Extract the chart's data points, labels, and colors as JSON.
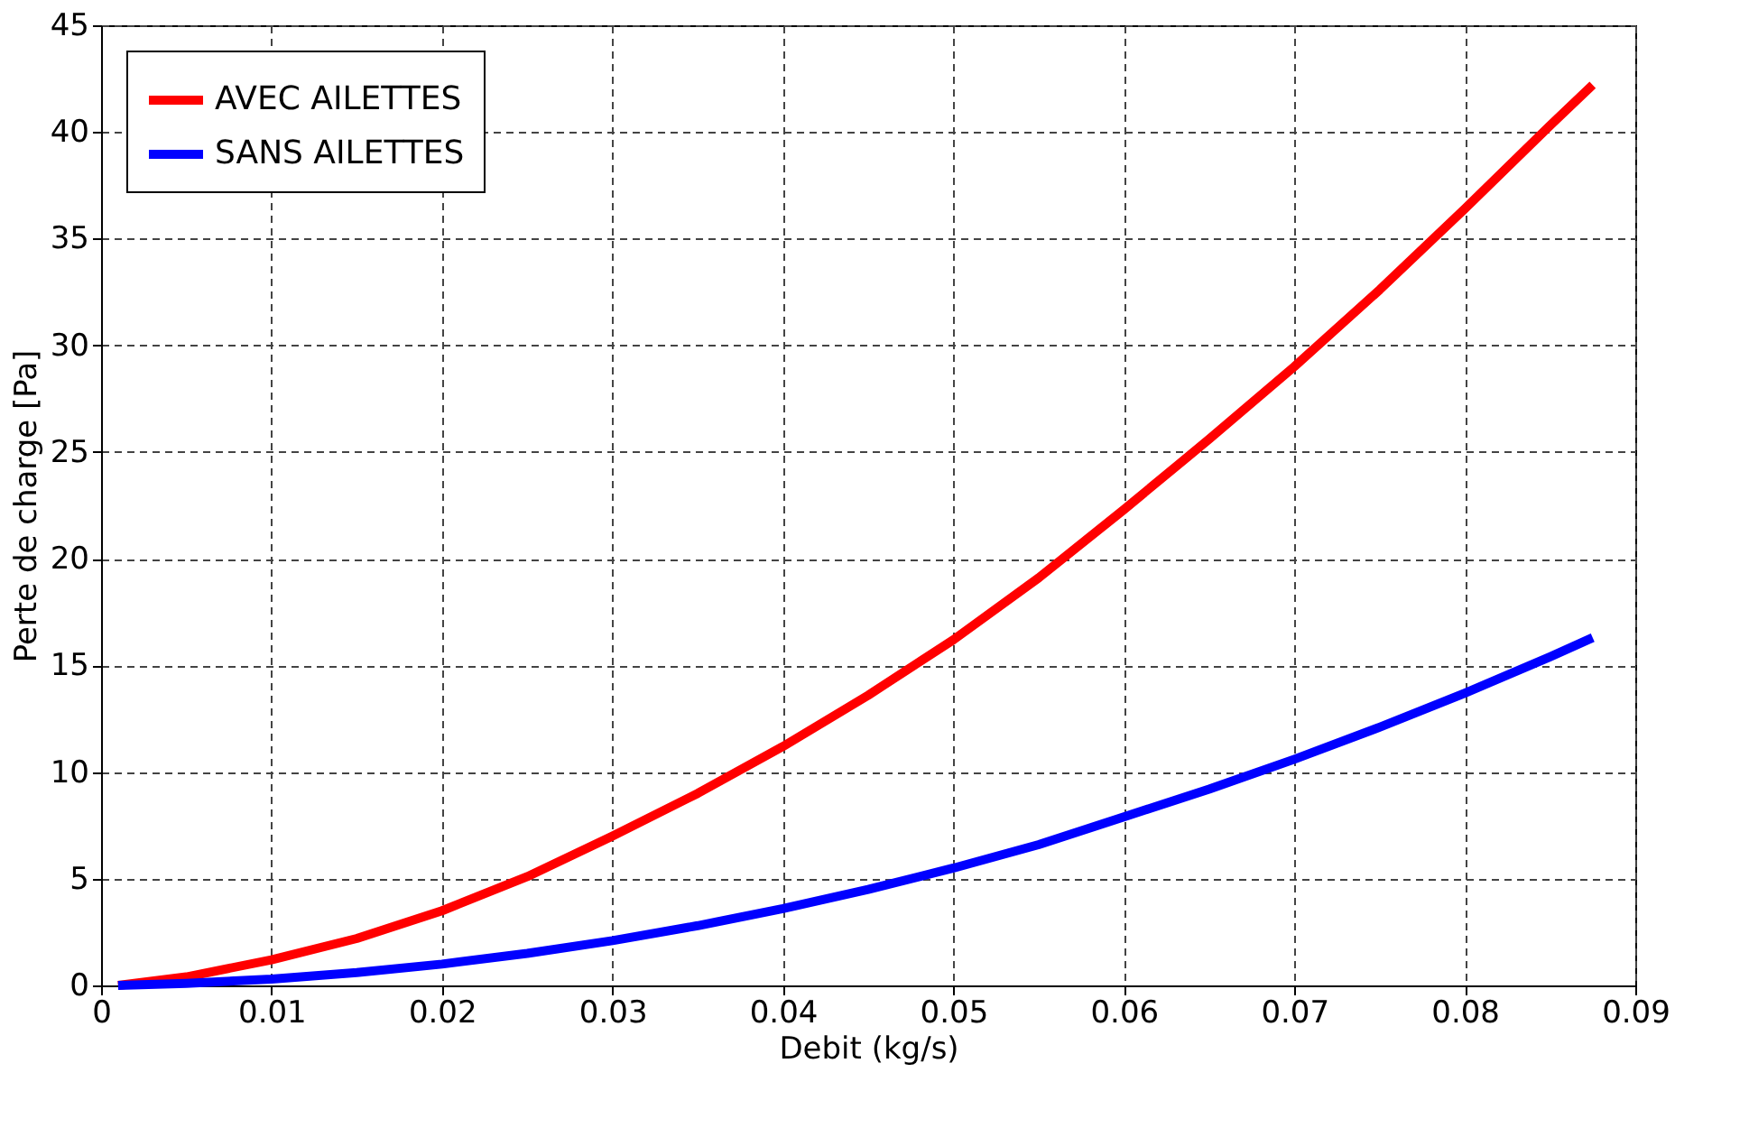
{
  "chart_data": {
    "type": "line",
    "xlabel": "Debit (kg/s)",
    "ylabel": "Perte de charge [Pa]",
    "x": [
      0.001,
      0.005,
      0.01,
      0.015,
      0.02,
      0.025,
      0.03,
      0.035,
      0.04,
      0.045,
      0.05,
      0.055,
      0.06,
      0.065,
      0.07,
      0.075,
      0.08,
      0.085,
      0.0875
    ],
    "series": [
      {
        "name": "AVEC AILETTES",
        "color": "#ff0000",
        "values": [
          0,
          0.4,
          1.2,
          2.2,
          3.5,
          5.1,
          7,
          9,
          11.2,
          13.6,
          16.2,
          19.1,
          22.3,
          25.6,
          29,
          32.6,
          36.4,
          40.3,
          42.2
        ]
      },
      {
        "name": "SANS AILETTES",
        "color": "#0000ff",
        "values": [
          0,
          0.1,
          0.3,
          0.6,
          1,
          1.5,
          2.1,
          2.8,
          3.6,
          4.5,
          5.5,
          6.6,
          7.9,
          9.2,
          10.6,
          12.1,
          13.7,
          15.4,
          16.3
        ]
      }
    ],
    "xlim": [
      0,
      0.09
    ],
    "xticks": [
      0,
      0.01,
      0.02,
      0.03,
      0.04,
      0.05,
      0.06,
      0.07,
      0.08,
      0.09
    ],
    "ylim": [
      0,
      45
    ],
    "yticks": [
      0,
      5,
      10,
      15,
      20,
      25,
      30,
      35,
      40,
      45
    ],
    "grid": true,
    "legend": "top left",
    "marker": "none",
    "line_style": "solid"
  }
}
